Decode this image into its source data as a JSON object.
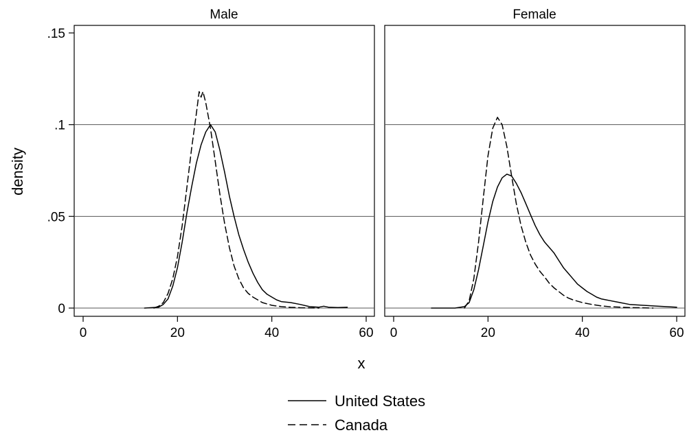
{
  "chart_data": {
    "type": "line",
    "xlabel": "x",
    "ylabel": "density",
    "xlim": [
      0,
      60
    ],
    "ylim": [
      0,
      0.15
    ],
    "x_ticks": [
      0,
      20,
      40,
      60
    ],
    "x_tick_labels": [
      "0",
      "20",
      "40",
      "60"
    ],
    "y_ticks": [
      0,
      0.05,
      0.1,
      0.15
    ],
    "y_tick_labels": [
      "0",
      ".05",
      ".1",
      ".15"
    ],
    "grid": "horizontal",
    "legend_position": "bottom",
    "panels": [
      {
        "title": "Male",
        "series": [
          {
            "name": "United States",
            "style": "solid",
            "points": [
              [
                13,
                0
              ],
              [
                16,
                0.0005
              ],
              [
                17,
                0.002
              ],
              [
                18,
                0.005
              ],
              [
                19,
                0.012
              ],
              [
                20,
                0.022
              ],
              [
                21,
                0.036
              ],
              [
                22,
                0.052
              ],
              [
                23,
                0.066
              ],
              [
                24,
                0.079
              ],
              [
                25,
                0.089
              ],
              [
                26,
                0.096
              ],
              [
                27,
                0.1
              ],
              [
                28,
                0.096
              ],
              [
                29,
                0.086
              ],
              [
                30,
                0.074
              ],
              [
                31,
                0.061
              ],
              [
                32,
                0.05
              ],
              [
                33,
                0.04
              ],
              [
                34,
                0.032
              ],
              [
                35,
                0.025
              ],
              [
                36,
                0.019
              ],
              [
                37,
                0.014
              ],
              [
                38,
                0.01
              ],
              [
                39,
                0.0075
              ],
              [
                40,
                0.006
              ],
              [
                41,
                0.0045
              ],
              [
                42,
                0.0035
              ],
              [
                44,
                0.003
              ],
              [
                46,
                0.002
              ],
              [
                48,
                0.0008
              ],
              [
                50,
                0.0005
              ],
              [
                51,
                0.001
              ],
              [
                52,
                0.0005
              ],
              [
                54,
                0.0003
              ],
              [
                56,
                0.0005
              ]
            ]
          },
          {
            "name": "Canada",
            "style": "dashed",
            "points": [
              [
                15,
                0
              ],
              [
                16,
                0.001
              ],
              [
                17,
                0.003
              ],
              [
                18,
                0.008
              ],
              [
                19,
                0.016
              ],
              [
                20,
                0.028
              ],
              [
                21,
                0.045
              ],
              [
                22,
                0.066
              ],
              [
                23,
                0.087
              ],
              [
                24,
                0.106
              ],
              [
                24.6,
                0.118
              ],
              [
                25,
                0.115
              ],
              [
                25.4,
                0.118
              ],
              [
                26,
                0.112
              ],
              [
                27,
                0.098
              ],
              [
                28,
                0.08
              ],
              [
                29,
                0.062
              ],
              [
                30,
                0.046
              ],
              [
                31,
                0.033
              ],
              [
                32,
                0.023
              ],
              [
                33,
                0.016
              ],
              [
                34,
                0.011
              ],
              [
                35,
                0.008
              ],
              [
                36,
                0.006
              ],
              [
                37,
                0.0045
              ],
              [
                38,
                0.003
              ],
              [
                40,
                0.0015
              ],
              [
                42,
                0.0008
              ],
              [
                44,
                0.0004
              ],
              [
                46,
                0.0002
              ],
              [
                50,
                0
              ]
            ]
          }
        ]
      },
      {
        "title": "Female",
        "series": [
          {
            "name": "United States",
            "style": "solid",
            "points": [
              [
                8,
                0
              ],
              [
                13,
                0
              ],
              [
                15,
                0.0008
              ],
              [
                16,
                0.003
              ],
              [
                17,
                0.01
              ],
              [
                18,
                0.021
              ],
              [
                19,
                0.034
              ],
              [
                20,
                0.047
              ],
              [
                21,
                0.058
              ],
              [
                22,
                0.066
              ],
              [
                23,
                0.071
              ],
              [
                24,
                0.073
              ],
              [
                25,
                0.072
              ],
              [
                26,
                0.068
              ],
              [
                27,
                0.063
              ],
              [
                28,
                0.057
              ],
              [
                29,
                0.051
              ],
              [
                30,
                0.045
              ],
              [
                31,
                0.04
              ],
              [
                32,
                0.036
              ],
              [
                33,
                0.033
              ],
              [
                34,
                0.03
              ],
              [
                35,
                0.026
              ],
              [
                36,
                0.022
              ],
              [
                37,
                0.019
              ],
              [
                38,
                0.016
              ],
              [
                39,
                0.013
              ],
              [
                40,
                0.011
              ],
              [
                41,
                0.009
              ],
              [
                42,
                0.0075
              ],
              [
                43,
                0.006
              ],
              [
                44,
                0.005
              ],
              [
                45,
                0.0045
              ],
              [
                46,
                0.004
              ],
              [
                48,
                0.003
              ],
              [
                50,
                0.002
              ],
              [
                53,
                0.0015
              ],
              [
                56,
                0.001
              ],
              [
                60,
                0.0005
              ]
            ]
          },
          {
            "name": "Canada",
            "style": "dashed",
            "points": [
              [
                15,
                0
              ],
              [
                16,
                0.004
              ],
              [
                17,
                0.016
              ],
              [
                18,
                0.036
              ],
              [
                19,
                0.06
              ],
              [
                20,
                0.083
              ],
              [
                21,
                0.098
              ],
              [
                22,
                0.104
              ],
              [
                23,
                0.1
              ],
              [
                24,
                0.088
              ],
              [
                25,
                0.072
              ],
              [
                26,
                0.057
              ],
              [
                27,
                0.045
              ],
              [
                28,
                0.036
              ],
              [
                29,
                0.029
              ],
              [
                30,
                0.024
              ],
              [
                31,
                0.02
              ],
              [
                32,
                0.017
              ],
              [
                33,
                0.0135
              ],
              [
                34,
                0.011
              ],
              [
                35,
                0.009
              ],
              [
                36,
                0.007
              ],
              [
                37,
                0.0055
              ],
              [
                38,
                0.0045
              ],
              [
                40,
                0.003
              ],
              [
                42,
                0.002
              ],
              [
                44,
                0.0012
              ],
              [
                46,
                0.0007
              ],
              [
                50,
                0.0003
              ],
              [
                55,
                0
              ]
            ]
          }
        ]
      }
    ],
    "legend": [
      {
        "label": "United States",
        "style": "solid"
      },
      {
        "label": "Canada",
        "style": "dashed"
      }
    ]
  }
}
